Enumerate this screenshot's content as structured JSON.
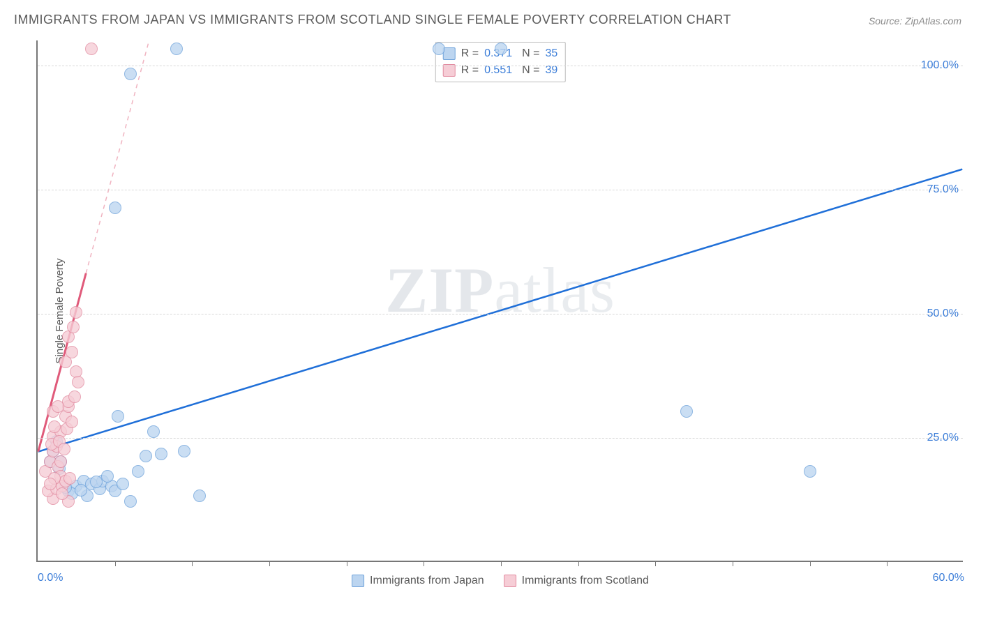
{
  "title": "IMMIGRANTS FROM JAPAN VS IMMIGRANTS FROM SCOTLAND SINGLE FEMALE POVERTY CORRELATION CHART",
  "source": "Source: ZipAtlas.com",
  "ylabel": "Single Female Poverty",
  "watermark_a": "ZIP",
  "watermark_b": "atlas",
  "chart": {
    "type": "scatter",
    "xlim": [
      0,
      60
    ],
    "ylim": [
      0,
      105
    ],
    "x_ticks": [
      0,
      60
    ],
    "x_tick_labels": [
      "0.0%",
      "60.0%"
    ],
    "x_minor_ticks": [
      5,
      10,
      15,
      20,
      25,
      30,
      35,
      40,
      45,
      50,
      55
    ],
    "y_ticks": [
      25,
      50,
      75,
      100
    ],
    "y_tick_labels": [
      "25.0%",
      "50.0%",
      "75.0%",
      "100.0%"
    ],
    "grid_color": "#d8d8d8",
    "background_color": "#ffffff",
    "axis_color": "#777777",
    "series": [
      {
        "name": "Immigrants from Japan",
        "color_fill": "#bcd5f0",
        "color_stroke": "#6fa3db",
        "r": 0.371,
        "n": 35,
        "trend": {
          "x1": 0,
          "y1": 22,
          "x2": 60,
          "y2": 79,
          "stroke": "#1f6fd8",
          "width": 2.5,
          "dash": null
        },
        "points": [
          [
            1.0,
            22.0
          ],
          [
            1.5,
            20.0
          ],
          [
            2.0,
            14.0
          ],
          [
            2.5,
            15.0
          ],
          [
            3.0,
            16.0
          ],
          [
            3.5,
            15.5
          ],
          [
            4.0,
            14.5
          ],
          [
            4.2,
            16.0
          ],
          [
            4.8,
            15.0
          ],
          [
            5.0,
            14.0
          ],
          [
            5.5,
            15.5
          ],
          [
            5.0,
            71.0
          ],
          [
            6.0,
            98.0
          ],
          [
            6.5,
            18.0
          ],
          [
            7.0,
            21.0
          ],
          [
            7.5,
            26.0
          ],
          [
            8.0,
            21.5
          ],
          [
            9.0,
            103.0
          ],
          [
            9.5,
            22.0
          ],
          [
            5.2,
            29.0
          ],
          [
            10.5,
            13.0
          ],
          [
            6.0,
            12.0
          ],
          [
            2.2,
            13.5
          ],
          [
            3.2,
            13.0
          ],
          [
            1.8,
            14.8
          ],
          [
            42.0,
            30.0
          ],
          [
            50.0,
            18.0
          ],
          [
            26.0,
            103.0
          ],
          [
            30.0,
            103.0
          ],
          [
            4.5,
            17.0
          ],
          [
            2.8,
            14.2
          ],
          [
            1.2,
            24.0
          ],
          [
            0.8,
            20.0
          ],
          [
            1.4,
            18.5
          ],
          [
            3.8,
            15.8
          ]
        ]
      },
      {
        "name": "Immigrants from Scotland",
        "color_fill": "#f6cdd6",
        "color_stroke": "#e28ca1",
        "r": 0.551,
        "n": 39,
        "trend_solid": {
          "x1": 0,
          "y1": 22,
          "x2": 3.1,
          "y2": 58,
          "stroke": "#e05a7a",
          "width": 3,
          "dash": null
        },
        "trend_dash": {
          "x1": 3.1,
          "y1": 58,
          "x2": 7.2,
          "y2": 105,
          "stroke": "#f0b3c0",
          "width": 1.5,
          "dash": "6,6"
        },
        "points": [
          [
            0.5,
            18.0
          ],
          [
            0.8,
            20.0
          ],
          [
            1.0,
            22.0
          ],
          [
            1.0,
            25.0
          ],
          [
            1.2,
            23.0
          ],
          [
            1.3,
            19.0
          ],
          [
            1.5,
            26.0
          ],
          [
            1.5,
            17.0
          ],
          [
            1.8,
            29.0
          ],
          [
            1.8,
            40.0
          ],
          [
            2.0,
            31.0
          ],
          [
            2.0,
            32.0
          ],
          [
            2.0,
            45.0
          ],
          [
            2.2,
            42.0
          ],
          [
            2.3,
            47.0
          ],
          [
            2.5,
            38.0
          ],
          [
            2.5,
            50.0
          ],
          [
            2.0,
            12.0
          ],
          [
            1.0,
            12.5
          ],
          [
            0.7,
            14.0
          ],
          [
            1.2,
            14.5
          ],
          [
            1.6,
            15.0
          ],
          [
            1.8,
            16.0
          ],
          [
            2.1,
            16.5
          ],
          [
            1.0,
            30.0
          ],
          [
            1.3,
            31.0
          ],
          [
            1.5,
            20.0
          ],
          [
            0.9,
            23.5
          ],
          [
            1.1,
            27.0
          ],
          [
            1.4,
            24.0
          ],
          [
            1.7,
            22.5
          ],
          [
            1.9,
            26.5
          ],
          [
            2.2,
            28.0
          ],
          [
            2.4,
            33.0
          ],
          [
            2.6,
            36.0
          ],
          [
            1.1,
            16.5
          ],
          [
            0.8,
            15.5
          ],
          [
            3.5,
            103.0
          ],
          [
            1.6,
            13.5
          ]
        ]
      }
    ]
  },
  "legend_top": [
    {
      "swatch": "blue",
      "r_label": "R =",
      "r": "0.371",
      "n_label": "N =",
      "n": "35"
    },
    {
      "swatch": "pink",
      "r_label": "R =",
      "r": "0.551",
      "n_label": "N =",
      "n": "39"
    }
  ],
  "legend_bottom": [
    {
      "swatch": "blue",
      "label": "Immigrants from Japan"
    },
    {
      "swatch": "pink",
      "label": "Immigrants from Scotland"
    }
  ]
}
